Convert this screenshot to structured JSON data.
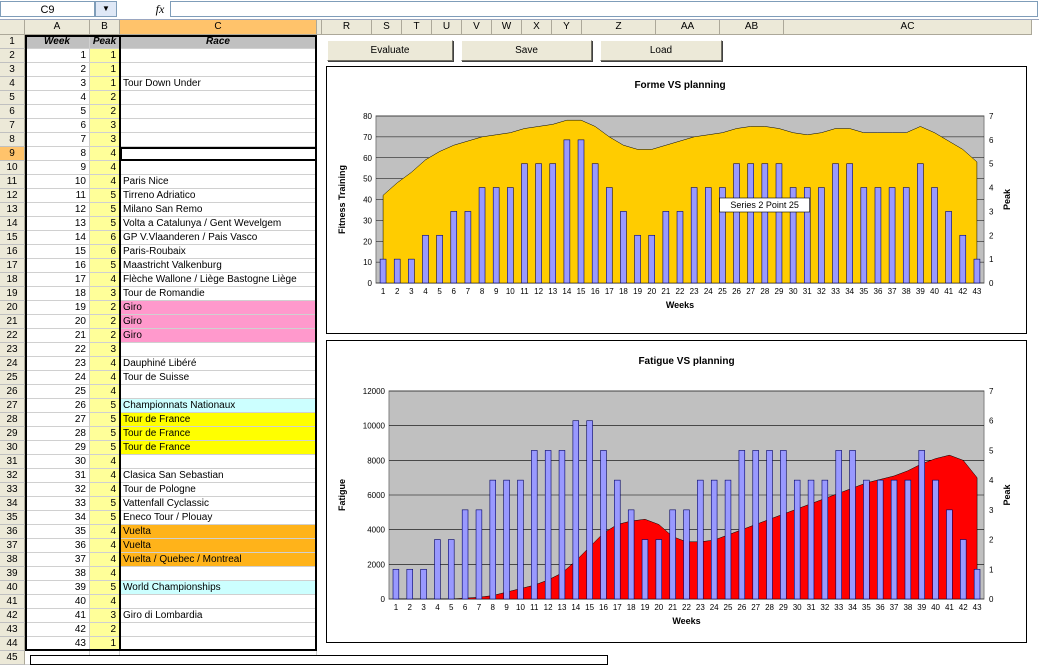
{
  "formula_bar": {
    "cell_ref": "C9",
    "fx": "fx",
    "formula": ""
  },
  "left_columns": [
    {
      "label": "A",
      "width": 65
    },
    {
      "label": "B",
      "width": 30
    },
    {
      "label": "C",
      "width": 197
    }
  ],
  "right_columns": [
    {
      "label": "R",
      "width": 50
    },
    {
      "label": "S",
      "width": 30
    },
    {
      "label": "T",
      "width": 30
    },
    {
      "label": "U",
      "width": 30
    },
    {
      "label": "V",
      "width": 30
    },
    {
      "label": "W",
      "width": 30
    },
    {
      "label": "X",
      "width": 30
    },
    {
      "label": "Y",
      "width": 30
    },
    {
      "label": "Z",
      "width": 74
    },
    {
      "label": "AA",
      "width": 64
    },
    {
      "label": "AB",
      "width": 64
    },
    {
      "label": "AC",
      "width": 248
    }
  ],
  "header_row": {
    "rownum": "1",
    "week": "Week",
    "peak": "Peak",
    "race": "Race"
  },
  "rows": [
    {
      "r": "2",
      "w": "1",
      "p": "1",
      "race": "",
      "bg": ""
    },
    {
      "r": "3",
      "w": "2",
      "p": "1",
      "race": "",
      "bg": ""
    },
    {
      "r": "4",
      "w": "3",
      "p": "1",
      "race": "Tour Down Under",
      "bg": ""
    },
    {
      "r": "5",
      "w": "4",
      "p": "2",
      "race": "",
      "bg": ""
    },
    {
      "r": "6",
      "w": "5",
      "p": "2",
      "race": "",
      "bg": ""
    },
    {
      "r": "7",
      "w": "6",
      "p": "3",
      "race": "",
      "bg": ""
    },
    {
      "r": "8",
      "w": "7",
      "p": "3",
      "race": "",
      "bg": ""
    },
    {
      "r": "9",
      "w": "8",
      "p": "4",
      "race": "",
      "bg": "",
      "selected": true
    },
    {
      "r": "10",
      "w": "9",
      "p": "4",
      "race": "",
      "bg": ""
    },
    {
      "r": "11",
      "w": "10",
      "p": "4",
      "race": "Paris Nice",
      "bg": ""
    },
    {
      "r": "12",
      "w": "11",
      "p": "5",
      "race": "Tirreno Adriatico",
      "bg": ""
    },
    {
      "r": "13",
      "w": "12",
      "p": "5",
      "race": "Milano San Remo",
      "bg": ""
    },
    {
      "r": "14",
      "w": "13",
      "p": "5",
      "race": "Volta a Catalunya / Gent Wevelgem",
      "bg": ""
    },
    {
      "r": "15",
      "w": "14",
      "p": "6",
      "race": "GP V.Vlaanderen / Pais Vasco",
      "bg": ""
    },
    {
      "r": "16",
      "w": "15",
      "p": "6",
      "race": "Paris-Roubaix",
      "bg": ""
    },
    {
      "r": "17",
      "w": "16",
      "p": "5",
      "race": "Maastricht Valkenburg",
      "bg": ""
    },
    {
      "r": "18",
      "w": "17",
      "p": "4",
      "race": "Flèche Wallone / Liège Bastogne Liège",
      "bg": ""
    },
    {
      "r": "19",
      "w": "18",
      "p": "3",
      "race": "Tour de Romandie",
      "bg": ""
    },
    {
      "r": "20",
      "w": "19",
      "p": "2",
      "race": "Giro",
      "bg": "#ff99cc"
    },
    {
      "r": "21",
      "w": "20",
      "p": "2",
      "race": "Giro",
      "bg": "#ff99cc"
    },
    {
      "r": "22",
      "w": "21",
      "p": "2",
      "race": "Giro",
      "bg": "#ff99cc"
    },
    {
      "r": "23",
      "w": "22",
      "p": "3",
      "race": "",
      "bg": ""
    },
    {
      "r": "24",
      "w": "23",
      "p": "4",
      "race": "Dauphiné Libéré",
      "bg": ""
    },
    {
      "r": "25",
      "w": "24",
      "p": "4",
      "race": "Tour de Suisse",
      "bg": ""
    },
    {
      "r": "26",
      "w": "25",
      "p": "4",
      "race": "",
      "bg": ""
    },
    {
      "r": "27",
      "w": "26",
      "p": "5",
      "race": "Championnats Nationaux",
      "bg": "#ccffff"
    },
    {
      "r": "28",
      "w": "27",
      "p": "5",
      "race": "Tour de France",
      "bg": "#ffff00"
    },
    {
      "r": "29",
      "w": "28",
      "p": "5",
      "race": "Tour de France",
      "bg": "#ffff00"
    },
    {
      "r": "30",
      "w": "29",
      "p": "5",
      "race": "Tour de France",
      "bg": "#ffff00"
    },
    {
      "r": "31",
      "w": "30",
      "p": "4",
      "race": "",
      "bg": ""
    },
    {
      "r": "32",
      "w": "31",
      "p": "4",
      "race": "Clasica San Sebastian",
      "bg": ""
    },
    {
      "r": "33",
      "w": "32",
      "p": "4",
      "race": "Tour de Pologne",
      "bg": ""
    },
    {
      "r": "34",
      "w": "33",
      "p": "5",
      "race": "Vattenfall Cyclassic",
      "bg": ""
    },
    {
      "r": "35",
      "w": "34",
      "p": "5",
      "race": "Eneco Tour / Plouay",
      "bg": ""
    },
    {
      "r": "36",
      "w": "35",
      "p": "4",
      "race": "Vuelta",
      "bg": "#ffb31a"
    },
    {
      "r": "37",
      "w": "36",
      "p": "4",
      "race": "Vuelta",
      "bg": "#ffb31a"
    },
    {
      "r": "38",
      "w": "37",
      "p": "4",
      "race": "Vuelta / Quebec / Montreal",
      "bg": "#ffb31a"
    },
    {
      "r": "39",
      "w": "38",
      "p": "4",
      "race": "",
      "bg": ""
    },
    {
      "r": "40",
      "w": "39",
      "p": "5",
      "race": "World Championships",
      "bg": "#ccffff"
    },
    {
      "r": "41",
      "w": "40",
      "p": "4",
      "race": "",
      "bg": ""
    },
    {
      "r": "42",
      "w": "41",
      "p": "3",
      "race": "Giro di Lombardia",
      "bg": ""
    },
    {
      "r": "43",
      "w": "42",
      "p": "2",
      "race": "",
      "bg": ""
    },
    {
      "r": "44",
      "w": "43",
      "p": "1",
      "race": "",
      "bg": ""
    },
    {
      "r": "45",
      "w": "",
      "p": "",
      "race": "",
      "bg": ""
    }
  ],
  "buttons": {
    "evaluate": "Evaluate",
    "save": "Save",
    "load": "Load"
  },
  "chart_data": [
    {
      "type": "bar",
      "title": "Forme VS planning",
      "xlabel": "Weeks",
      "ylabel": "Fitness Training",
      "y2label": "Peak",
      "ylim": [
        0,
        80
      ],
      "yticks": [
        0,
        10,
        20,
        30,
        40,
        50,
        60,
        70,
        80
      ],
      "y2lim": [
        0,
        7
      ],
      "y2ticks": [
        0,
        1,
        2,
        3,
        4,
        5,
        6,
        7
      ],
      "categories": [
        "1",
        "2",
        "3",
        "4",
        "5",
        "6",
        "7",
        "8",
        "9",
        "10",
        "11",
        "12",
        "13",
        "14",
        "15",
        "16",
        "17",
        "18",
        "19",
        "20",
        "21",
        "22",
        "23",
        "24",
        "25",
        "26",
        "27",
        "28",
        "29",
        "30",
        "31",
        "32",
        "33",
        "34",
        "35",
        "36",
        "37",
        "38",
        "39",
        "40",
        "41",
        "42",
        "43"
      ],
      "series": [
        {
          "kind": "area",
          "color": "#ffcc00",
          "values": [
            42,
            48,
            53,
            59,
            63,
            66,
            68,
            70,
            71,
            72,
            74,
            75,
            76,
            78,
            78,
            75,
            70,
            66,
            64,
            64,
            66,
            68,
            70,
            71,
            72,
            74,
            75,
            75,
            74,
            72,
            71,
            72,
            74,
            74,
            72,
            72,
            72,
            72,
            75,
            72,
            68,
            64,
            58
          ]
        },
        {
          "kind": "bar",
          "axis": "right",
          "color": "#9999ff",
          "values": [
            1,
            1,
            1,
            2,
            2,
            3,
            3,
            4,
            4,
            4,
            5,
            5,
            5,
            6,
            6,
            5,
            4,
            3,
            2,
            2,
            3,
            3,
            4,
            4,
            4,
            5,
            5,
            5,
            5,
            4,
            4,
            4,
            5,
            5,
            4,
            4,
            4,
            4,
            5,
            4,
            3,
            2,
            1
          ]
        }
      ],
      "tooltip": "Series 2 Point 25",
      "plot_bg": "#c0c0c0",
      "grid": true
    },
    {
      "type": "bar",
      "title": "Fatigue VS planning",
      "xlabel": "Weeks",
      "ylabel": "Fatigue",
      "y2label": "Peak",
      "ylim": [
        0,
        12000
      ],
      "yticks": [
        0,
        2000,
        4000,
        6000,
        8000,
        10000,
        12000
      ],
      "y2lim": [
        0,
        7
      ],
      "y2ticks": [
        0,
        1,
        2,
        3,
        4,
        5,
        6,
        7
      ],
      "categories": [
        "1",
        "2",
        "3",
        "4",
        "5",
        "6",
        "7",
        "8",
        "9",
        "10",
        "11",
        "12",
        "13",
        "14",
        "15",
        "16",
        "17",
        "18",
        "19",
        "20",
        "21",
        "22",
        "23",
        "24",
        "25",
        "26",
        "27",
        "28",
        "29",
        "30",
        "31",
        "32",
        "33",
        "34",
        "35",
        "36",
        "37",
        "38",
        "39",
        "40",
        "41",
        "42",
        "43"
      ],
      "series": [
        {
          "kind": "area",
          "color": "#ff0000",
          "values": [
            0,
            0,
            0,
            0,
            0,
            50,
            100,
            200,
            400,
            600,
            800,
            1100,
            1500,
            2200,
            3000,
            3800,
            4300,
            4500,
            4600,
            4300,
            3600,
            3300,
            3300,
            3400,
            3700,
            4000,
            4300,
            4600,
            4900,
            5200,
            5500,
            5800,
            6100,
            6400,
            6700,
            6900,
            7100,
            7400,
            7800,
            8100,
            8300,
            8000,
            7000
          ]
        },
        {
          "kind": "bar",
          "axis": "right",
          "color": "#9999ff",
          "values": [
            1,
            1,
            1,
            2,
            2,
            3,
            3,
            4,
            4,
            4,
            5,
            5,
            5,
            6,
            6,
            5,
            4,
            3,
            2,
            2,
            3,
            3,
            4,
            4,
            4,
            5,
            5,
            5,
            5,
            4,
            4,
            4,
            5,
            5,
            4,
            4,
            4,
            4,
            5,
            4,
            3,
            2,
            1
          ]
        }
      ],
      "plot_bg": "#c0c0c0",
      "grid": true
    }
  ]
}
